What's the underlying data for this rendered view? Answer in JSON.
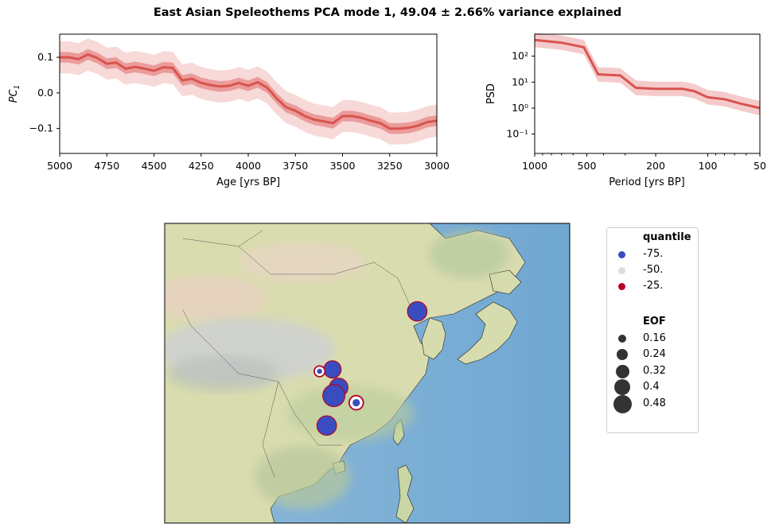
{
  "title": "East Asian Speleothems PCA mode 1, 49.04 ± 2.66% variance explained",
  "chart_data": [
    {
      "type": "line",
      "name": "pc_timeseries",
      "xlabel": "Age [yrs BP]",
      "ylabel": "PC",
      "ylabel_sub": "1",
      "xlim": [
        5000,
        3000
      ],
      "ylim": [
        -0.17,
        0.165
      ],
      "xticks": [
        5000,
        4750,
        4500,
        4250,
        4000,
        3750,
        3500,
        3250,
        3000
      ],
      "xtick_labels": [
        "5000",
        "4750",
        "4500",
        "4250",
        "4000",
        "3750",
        "3500",
        "3250",
        "3000"
      ],
      "yticks": [
        0.1,
        0.0,
        -0.1
      ],
      "ytick_labels": [
        "0.1",
        "0.0",
        "−0.1"
      ],
      "x": [
        5000,
        4950,
        4900,
        4850,
        4800,
        4750,
        4700,
        4650,
        4600,
        4550,
        4500,
        4450,
        4400,
        4350,
        4300,
        4250,
        4200,
        4150,
        4100,
        4050,
        4000,
        3950,
        3900,
        3850,
        3800,
        3750,
        3700,
        3650,
        3600,
        3550,
        3500,
        3450,
        3400,
        3350,
        3300,
        3250,
        3200,
        3150,
        3100,
        3050,
        3000
      ],
      "y": [
        0.1,
        0.1,
        0.095,
        0.108,
        0.098,
        0.082,
        0.085,
        0.068,
        0.073,
        0.068,
        0.062,
        0.072,
        0.07,
        0.035,
        0.04,
        0.028,
        0.022,
        0.018,
        0.02,
        0.028,
        0.02,
        0.03,
        0.015,
        -0.015,
        -0.04,
        -0.05,
        -0.065,
        -0.075,
        -0.08,
        -0.085,
        -0.065,
        -0.065,
        -0.07,
        -0.078,
        -0.085,
        -0.1,
        -0.1,
        -0.098,
        -0.092,
        -0.082,
        -0.078
      ],
      "band_inner": 0.015,
      "band_outer": 0.045,
      "color": "#d9534f"
    },
    {
      "type": "line",
      "name": "psd",
      "xlabel": "Period [yrs BP]",
      "ylabel": "PSD",
      "xscale": "log",
      "yscale": "log",
      "xlim": [
        1000,
        50
      ],
      "ylim": [
        0.018,
        700
      ],
      "xticks": [
        1000,
        500,
        200,
        100,
        50
      ],
      "xtick_labels": [
        "1000",
        "500",
        "200",
        "100",
        "50"
      ],
      "yticks": [
        100,
        10,
        1,
        0.1
      ],
      "ytick_labels": [
        "10²",
        "10¹",
        "10⁰",
        "10⁻¹"
      ],
      "x": [
        1000,
        700,
        520,
        430,
        320,
        260,
        200,
        140,
        120,
        100,
        80,
        65,
        50
      ],
      "y": [
        420,
        330,
        220,
        20,
        18,
        6,
        5.5,
        5.5,
        4.5,
        2.6,
        2.2,
        1.5,
        1.0
      ],
      "band_factor": 1.9,
      "color": "#d9534f"
    },
    {
      "type": "scatter",
      "name": "eof_map",
      "map_extent": {
        "lon": [
          70,
          155
        ],
        "lat": [
          0,
          63
        ]
      },
      "points": [
        {
          "lon": 123.0,
          "lat": 44.5,
          "eof": 0.38,
          "quantile": -75
        },
        {
          "lon": 105.2,
          "lat": 32.3,
          "eof": 0.33,
          "quantile": -75
        },
        {
          "lon": 102.5,
          "lat": 31.9,
          "eof": 0.12,
          "quantile": -25
        },
        {
          "lon": 106.5,
          "lat": 28.5,
          "eof": 0.36,
          "quantile": -75
        },
        {
          "lon": 105.5,
          "lat": 26.8,
          "eof": 0.44,
          "quantile": -75
        },
        {
          "lon": 110.2,
          "lat": 25.3,
          "eof": 0.2,
          "quantile": -25
        },
        {
          "lon": 104.0,
          "lat": 20.5,
          "eof": 0.38,
          "quantile": -75
        }
      ]
    }
  ],
  "legend": {
    "quantile_title": "quantile",
    "quantile_items": [
      {
        "label": "-75.",
        "color": "#3b4cc0"
      },
      {
        "label": "-50.",
        "color": "#dddddd"
      },
      {
        "label": "-25.",
        "color": "#b40426"
      }
    ],
    "eof_title": "EOF",
    "eof_items": [
      {
        "label": "0.16",
        "value": 0.16
      },
      {
        "label": "0.24",
        "value": 0.24
      },
      {
        "label": "0.32",
        "value": 0.32
      },
      {
        "label": "0.4",
        "value": 0.4
      },
      {
        "label": "0.48",
        "value": 0.48
      }
    ]
  }
}
